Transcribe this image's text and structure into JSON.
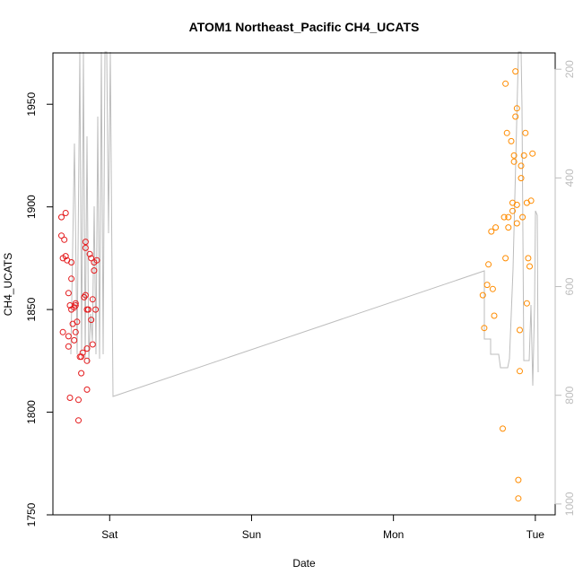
{
  "chart_data": {
    "type": "scatter",
    "title": "ATOM1 Northeast_Pacific CH4_UCATS",
    "xlabel": "Date",
    "ylabel": "CH4_UCATS",
    "x_ticks": [
      "Sat",
      "Sun",
      "Mon",
      "Tue"
    ],
    "x_tick_positions_days": [
      1,
      2,
      3,
      4
    ],
    "xlim_days": [
      0.6,
      4.14
    ],
    "ylim": [
      1750,
      1975
    ],
    "y_ticks": [
      1750,
      1800,
      1850,
      1900,
      1950
    ],
    "right_axis": {
      "ylim_inverted": [
        1020,
        170
      ],
      "ticks": [
        200,
        400,
        600,
        800,
        1000
      ],
      "color": "#bdbdbd"
    },
    "series": [
      {
        "color": "#e41a1c",
        "points": [
          [
            0.66,
            1895
          ],
          [
            0.66,
            1886
          ],
          [
            0.67,
            1875
          ],
          [
            0.67,
            1839
          ],
          [
            0.68,
            1884
          ],
          [
            0.69,
            1876
          ],
          [
            0.69,
            1897
          ],
          [
            0.7,
            1874
          ],
          [
            0.71,
            1858
          ],
          [
            0.71,
            1837
          ],
          [
            0.71,
            1832
          ],
          [
            0.72,
            1807
          ],
          [
            0.72,
            1852
          ],
          [
            0.73,
            1865
          ],
          [
            0.73,
            1850
          ],
          [
            0.73,
            1873
          ],
          [
            0.74,
            1843
          ],
          [
            0.75,
            1851
          ],
          [
            0.75,
            1835
          ],
          [
            0.76,
            1853
          ],
          [
            0.76,
            1852
          ],
          [
            0.76,
            1839
          ],
          [
            0.77,
            1844
          ],
          [
            0.78,
            1796
          ],
          [
            0.78,
            1806
          ],
          [
            0.79,
            1827
          ],
          [
            0.8,
            1819
          ],
          [
            0.8,
            1827
          ],
          [
            0.81,
            1829
          ],
          [
            0.82,
            1856
          ],
          [
            0.83,
            1857
          ],
          [
            0.83,
            1883
          ],
          [
            0.83,
            1880
          ],
          [
            0.84,
            1850
          ],
          [
            0.84,
            1825
          ],
          [
            0.84,
            1831
          ],
          [
            0.84,
            1811
          ],
          [
            0.85,
            1850
          ],
          [
            0.86,
            1877
          ],
          [
            0.87,
            1875
          ],
          [
            0.87,
            1845
          ],
          [
            0.88,
            1855
          ],
          [
            0.88,
            1833
          ],
          [
            0.89,
            1873
          ],
          [
            0.89,
            1869
          ],
          [
            0.9,
            1850
          ],
          [
            0.91,
            1874
          ]
        ]
      },
      {
        "color": "#ff8c00",
        "points": [
          [
            3.63,
            1857
          ],
          [
            3.64,
            1841
          ],
          [
            3.66,
            1862
          ],
          [
            3.67,
            1872
          ],
          [
            3.69,
            1888
          ],
          [
            3.7,
            1860
          ],
          [
            3.71,
            1847
          ],
          [
            3.72,
            1890
          ],
          [
            3.77,
            1792
          ],
          [
            3.78,
            1895
          ],
          [
            3.79,
            1960
          ],
          [
            3.79,
            1875
          ],
          [
            3.8,
            1936
          ],
          [
            3.81,
            1890
          ],
          [
            3.81,
            1895
          ],
          [
            3.83,
            1932
          ],
          [
            3.84,
            1902
          ],
          [
            3.84,
            1898
          ],
          [
            3.85,
            1925
          ],
          [
            3.85,
            1922
          ],
          [
            3.86,
            1944
          ],
          [
            3.86,
            1966
          ],
          [
            3.87,
            1948
          ],
          [
            3.87,
            1901
          ],
          [
            3.87,
            1892
          ],
          [
            3.88,
            1767
          ],
          [
            3.88,
            1758
          ],
          [
            3.89,
            1840
          ],
          [
            3.89,
            1820
          ],
          [
            3.9,
            1920
          ],
          [
            3.9,
            1914
          ],
          [
            3.91,
            1895
          ],
          [
            3.92,
            1925
          ],
          [
            3.93,
            1936
          ],
          [
            3.94,
            1853
          ],
          [
            3.94,
            1902
          ],
          [
            3.95,
            1875
          ],
          [
            3.96,
            1871
          ],
          [
            3.97,
            1903
          ],
          [
            3.98,
            1926
          ]
        ]
      }
    ]
  }
}
